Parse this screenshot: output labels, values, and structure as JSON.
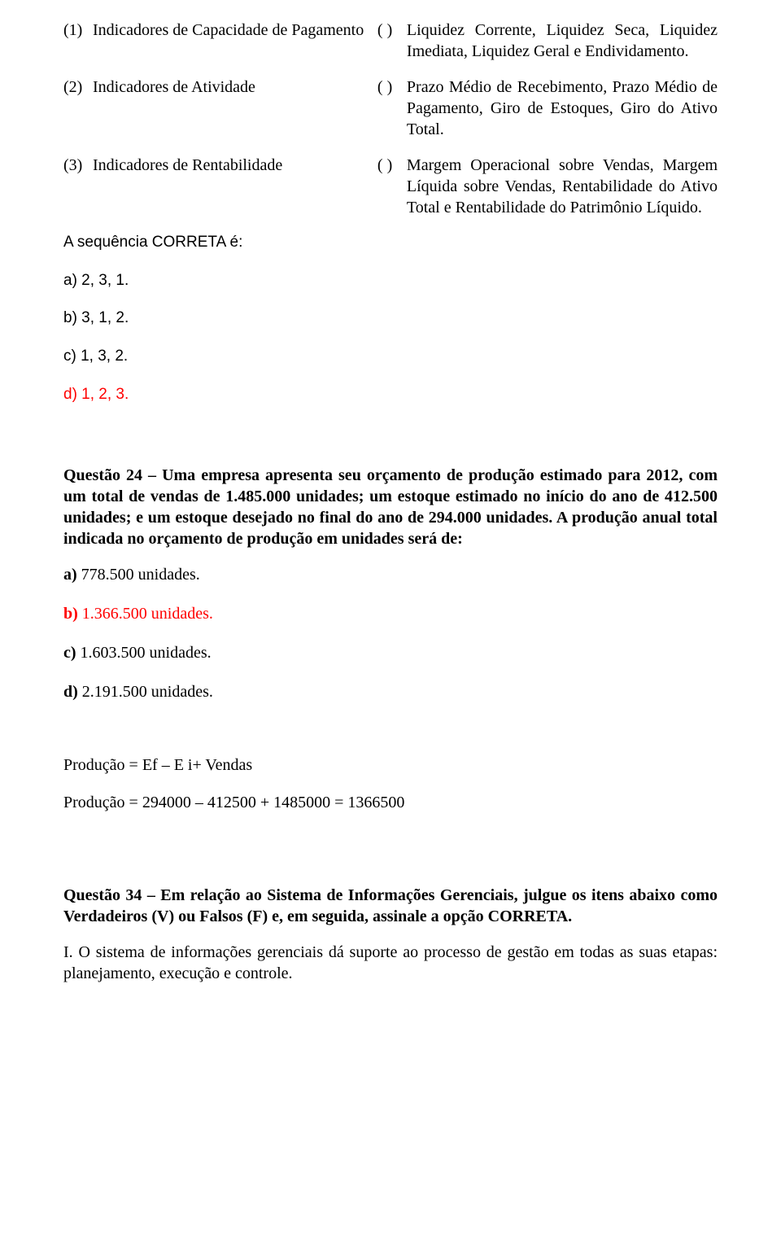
{
  "matching": {
    "rows": [
      {
        "num": "(1)",
        "left": "Indicadores de Capacidade de Pagamento",
        "paren": "( )",
        "right": "Liquidez Corrente, Liquidez Seca, Liquidez Imediata, Liquidez Geral e Endividamento."
      },
      {
        "num": "(2)",
        "left": "Indicadores de Atividade",
        "paren": "( )",
        "right": "Prazo Médio de Recebimento, Prazo Médio de Pagamento, Giro de Estoques, Giro do Ativo Total."
      },
      {
        "num": "(3)",
        "left": "Indicadores de Rentabilidade",
        "paren": "( )",
        "right": "Margem Operacional sobre Vendas, Margem Líquida sobre Vendas, Rentabilidade do Ativo Total e Rentabilidade do Patrimônio Líquido."
      }
    ]
  },
  "q23": {
    "prompt": "A sequência CORRETA é:",
    "a": "a) 2, 3, 1.",
    "b": "b) 3, 1, 2.",
    "c": "c) 1, 3, 2.",
    "d": "d) 1, 2, 3."
  },
  "q24": {
    "title": "Questão 24 – Uma empresa apresenta seu orçamento de produção estimado para 2012, com um total de vendas de 1.485.000 unidades; um estoque estimado no início do ano de 412.500 unidades; e um estoque desejado no final do ano de 294.000 unidades. A produção anual total indicada no orçamento de produção em unidades será de:",
    "a_label": "a) ",
    "a_val": "778.500 unidades.",
    "b_label": "b) ",
    "b_val": "1.366.500 unidades.",
    "c_label": "c) ",
    "c_val": "1.603.500 unidades.",
    "d_label": "d) ",
    "d_val": "2.191.500 unidades.",
    "prod1": "Produção =  Ef – E i+ Vendas",
    "prod2": "Produção = 294000 – 412500 + 1485000 = 1366500"
  },
  "q34": {
    "title": "Questão 34 – Em relação ao Sistema de Informações Gerenciais, julgue os itens abaixo como Verdadeiros (V) ou Falsos (F) e, em seguida, assinale a opção CORRETA.",
    "item1": "I. O sistema de informações gerenciais dá suporte ao processo de gestão em todas as suas etapas: planejamento, execução e controle."
  },
  "colors": {
    "text": "#000000",
    "answer": "#ff0000",
    "background": "#ffffff"
  }
}
